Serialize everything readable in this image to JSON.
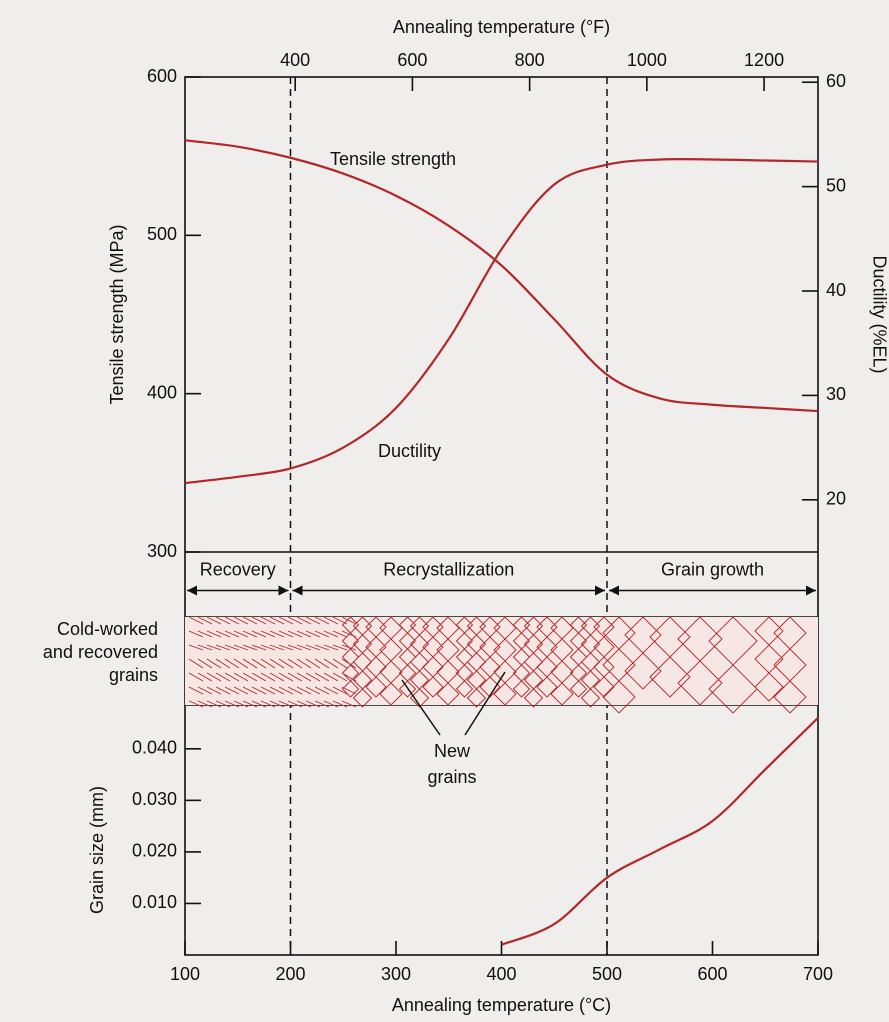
{
  "chart_data": [
    {
      "type": "line",
      "x2label": "Annealing temperature (°F)",
      "x2lim": [
        212,
        1292
      ],
      "x2ticks": [
        400,
        600,
        800,
        1000,
        1200
      ],
      "ylabel": "Tensile strength (MPa)",
      "ylim": [
        300,
        600
      ],
      "yticks": [
        300,
        400,
        500,
        600
      ],
      "y2label": "Ductility (%EL)",
      "y2lim": [
        15,
        60.5
      ],
      "y2ticks": [
        20,
        30,
        40,
        50,
        60
      ],
      "xlim": [
        100,
        700
      ],
      "boundaries": [
        200,
        500
      ],
      "x": [
        100,
        150,
        200,
        250,
        300,
        350,
        400,
        450,
        500,
        550,
        600,
        650,
        700
      ],
      "series": [
        {
          "name": "Tensile strength",
          "color": "#b3262a",
          "values": [
            560,
            556,
            549,
            539,
            525,
            506,
            481,
            447,
            412,
            397,
            393,
            391,
            389
          ]
        },
        {
          "name": "Ductility",
          "color": "#b3262a",
          "axis": "y2",
          "values": [
            21.6,
            22.2,
            23,
            25,
            28.8,
            35.4,
            44,
            50.2,
            52.1,
            52.6,
            52.6,
            52.5,
            52.4
          ]
        }
      ]
    },
    {
      "type": "line",
      "stages": [
        "Recovery",
        "Recrystallization",
        "Grain growth"
      ],
      "annotations": [
        [
          "Cold-worked",
          "and recovered",
          "grains"
        ],
        [
          "New",
          "grains"
        ]
      ],
      "ylabel": "Grain size (mm)",
      "ylim": [
        0,
        0.0485
      ],
      "yticks": [
        {
          "value": 0.01,
          "label": "0.010"
        },
        {
          "value": 0.02,
          "label": "0.020"
        },
        {
          "value": 0.03,
          "label": "0.030"
        },
        {
          "value": 0.04,
          "label": "0.040"
        }
      ],
      "xlabel": "Annealing temperature (°C)",
      "xlim": [
        100,
        700
      ],
      "xticks": [
        100,
        200,
        300,
        400,
        500,
        600,
        700
      ],
      "x": [
        400,
        450,
        500,
        550,
        600,
        650,
        700
      ],
      "series": [
        {
          "color": "#b3262a",
          "values": [
            0.002,
            0.006,
            0.015,
            0.0205,
            0.026,
            0.036,
            0.046
          ]
        }
      ]
    }
  ]
}
